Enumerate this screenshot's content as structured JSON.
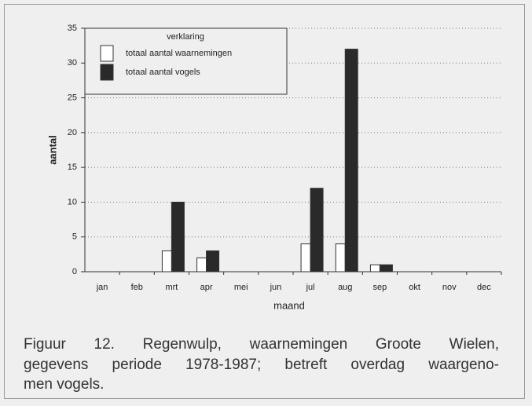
{
  "chart_data": {
    "type": "bar",
    "categories": [
      "jan",
      "feb",
      "mrt",
      "apr",
      "mei",
      "jun",
      "jul",
      "aug",
      "sep",
      "okt",
      "nov",
      "dec"
    ],
    "series": [
      {
        "name": "totaal aantal waarnemingen",
        "color": "#ffffff",
        "values": [
          0,
          0,
          3,
          2,
          0,
          0,
          4,
          4,
          1,
          0,
          0,
          0
        ]
      },
      {
        "name": "totaal aantal vogels",
        "color": "#2a2a2a",
        "values": [
          0,
          0,
          10,
          3,
          0,
          0,
          12,
          32,
          1,
          0,
          0,
          0
        ]
      }
    ],
    "ylim": [
      0,
      35
    ],
    "yticks": [
      0,
      5,
      10,
      15,
      20,
      25,
      30,
      35
    ],
    "grid": true,
    "ylabel": "aantal",
    "xlabel": "maand",
    "legend_title": "verklaring",
    "legend": "upper left",
    "caption": [
      "Figuur 12. Regenwulp, waarnemingen Groote Wielen,",
      "gegevens periode 1978-1987; betreft overdag waargeno-",
      "men vogels."
    ]
  }
}
